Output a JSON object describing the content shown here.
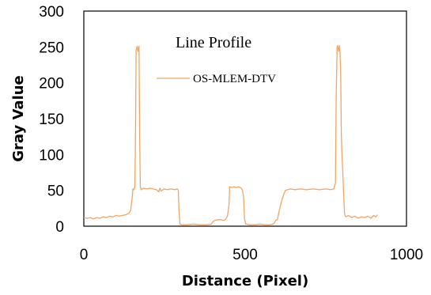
{
  "chart_data": {
    "type": "line",
    "title": "Line Profile",
    "xlabel": "Distance (Pixel)",
    "ylabel": "Gray Value",
    "xlim": [
      0,
      1000
    ],
    "ylim": [
      0,
      300
    ],
    "x_ticks": [
      "0",
      "500",
      "1000"
    ],
    "y_ticks": [
      "0",
      "50",
      "100",
      "150",
      "200",
      "250",
      "300"
    ],
    "grid": false,
    "legend_position": "top-right",
    "series": [
      {
        "name": "OS-MLEM-DTV",
        "color": "#F4A460",
        "points": [
          [
            0,
            12
          ],
          [
            10,
            11
          ],
          [
            20,
            12
          ],
          [
            30,
            10
          ],
          [
            40,
            12
          ],
          [
            50,
            11
          ],
          [
            60,
            13
          ],
          [
            70,
            12
          ],
          [
            80,
            14
          ],
          [
            90,
            13
          ],
          [
            100,
            15
          ],
          [
            110,
            14
          ],
          [
            120,
            15
          ],
          [
            130,
            16
          ],
          [
            140,
            18
          ],
          [
            145,
            22
          ],
          [
            150,
            40
          ],
          [
            152,
            52
          ],
          [
            155,
            51
          ],
          [
            158,
            55
          ],
          [
            160,
            120
          ],
          [
            162,
            245
          ],
          [
            165,
            251
          ],
          [
            168,
            244
          ],
          [
            171,
            251
          ],
          [
            173,
            128
          ],
          [
            175,
            55
          ],
          [
            178,
            51
          ],
          [
            185,
            53
          ],
          [
            195,
            52
          ],
          [
            205,
            53
          ],
          [
            215,
            52
          ],
          [
            225,
            51
          ],
          [
            232,
            48
          ],
          [
            236,
            53
          ],
          [
            240,
            49
          ],
          [
            248,
            52
          ],
          [
            258,
            51
          ],
          [
            270,
            52
          ],
          [
            282,
            51
          ],
          [
            290,
            52
          ],
          [
            293,
            50
          ],
          [
            295,
            20
          ],
          [
            298,
            3
          ],
          [
            305,
            2
          ],
          [
            320,
            2
          ],
          [
            340,
            3
          ],
          [
            360,
            2
          ],
          [
            380,
            2
          ],
          [
            395,
            3
          ],
          [
            400,
            6
          ],
          [
            405,
            8
          ],
          [
            415,
            9
          ],
          [
            425,
            9
          ],
          [
            435,
            8
          ],
          [
            440,
            10
          ],
          [
            445,
            14
          ],
          [
            450,
            30
          ],
          [
            452,
            55
          ],
          [
            458,
            54
          ],
          [
            465,
            55
          ],
          [
            472,
            54
          ],
          [
            480,
            55
          ],
          [
            488,
            53
          ],
          [
            492,
            50
          ],
          [
            495,
            40
          ],
          [
            498,
            10
          ],
          [
            502,
            3
          ],
          [
            515,
            2
          ],
          [
            530,
            2
          ],
          [
            545,
            3
          ],
          [
            560,
            2
          ],
          [
            575,
            2
          ],
          [
            588,
            3
          ],
          [
            595,
            8
          ],
          [
            600,
            9
          ],
          [
            605,
            20
          ],
          [
            610,
            30
          ],
          [
            615,
            38
          ],
          [
            620,
            45
          ],
          [
            625,
            50
          ],
          [
            632,
            51
          ],
          [
            640,
            52
          ],
          [
            655,
            51
          ],
          [
            670,
            52
          ],
          [
            690,
            51
          ],
          [
            710,
            52
          ],
          [
            730,
            51
          ],
          [
            750,
            52
          ],
          [
            765,
            51
          ],
          [
            775,
            52
          ],
          [
            780,
            60
          ],
          [
            782,
            180
          ],
          [
            785,
            250
          ],
          [
            787,
            252
          ],
          [
            790,
            244
          ],
          [
            793,
            252
          ],
          [
            796,
            215
          ],
          [
            798,
            130
          ],
          [
            800,
            100
          ],
          [
            803,
            72
          ],
          [
            806,
            38
          ],
          [
            808,
            17
          ],
          [
            812,
            13
          ],
          [
            820,
            15
          ],
          [
            830,
            12
          ],
          [
            840,
            14
          ],
          [
            850,
            11
          ],
          [
            860,
            13
          ],
          [
            870,
            12
          ],
          [
            880,
            14
          ],
          [
            890,
            11
          ],
          [
            898,
            15
          ],
          [
            905,
            13
          ],
          [
            910,
            16
          ]
        ]
      }
    ]
  }
}
